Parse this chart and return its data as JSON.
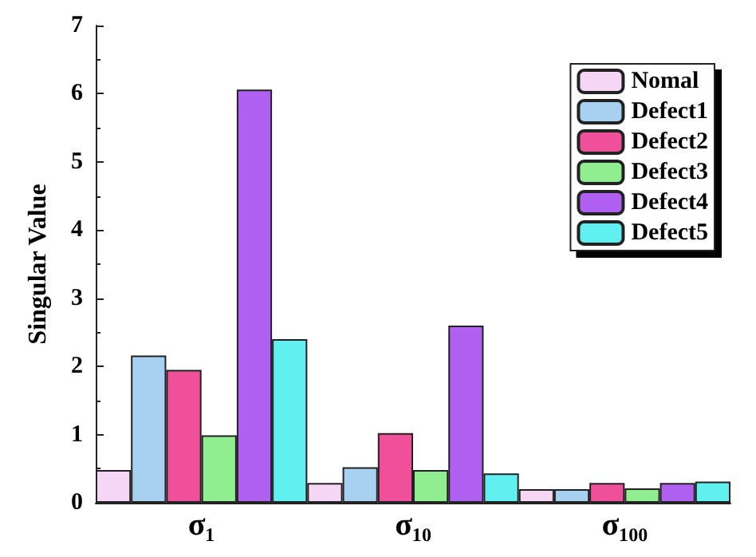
{
  "chart_data": {
    "type": "bar",
    "ylabel": "Singular Value",
    "categories": [
      "σ₁",
      "σ₁₀",
      "σ₁₀₀"
    ],
    "series": [
      {
        "name": "Nomal",
        "color": "#f5d6f5",
        "values": [
          0.48,
          0.29,
          0.2
        ]
      },
      {
        "name": "Defect1",
        "color": "#a8d0f0",
        "values": [
          2.16,
          0.52,
          0.2
        ]
      },
      {
        "name": "Defect2",
        "color": "#f0509a",
        "values": [
          1.95,
          1.02,
          0.29
        ]
      },
      {
        "name": "Defect3",
        "color": "#90ee90",
        "values": [
          0.99,
          0.48,
          0.21
        ]
      },
      {
        "name": "Defect4",
        "color": "#b060f0",
        "values": [
          6.06,
          2.6,
          0.29
        ]
      },
      {
        "name": "Defect5",
        "color": "#60f0f0",
        "values": [
          2.4,
          0.43,
          0.31
        ]
      }
    ],
    "ylim": [
      0,
      7
    ],
    "yticks": [
      0,
      1,
      2,
      3,
      4,
      5,
      6,
      7
    ],
    "grid": false,
    "legend": "top right"
  }
}
